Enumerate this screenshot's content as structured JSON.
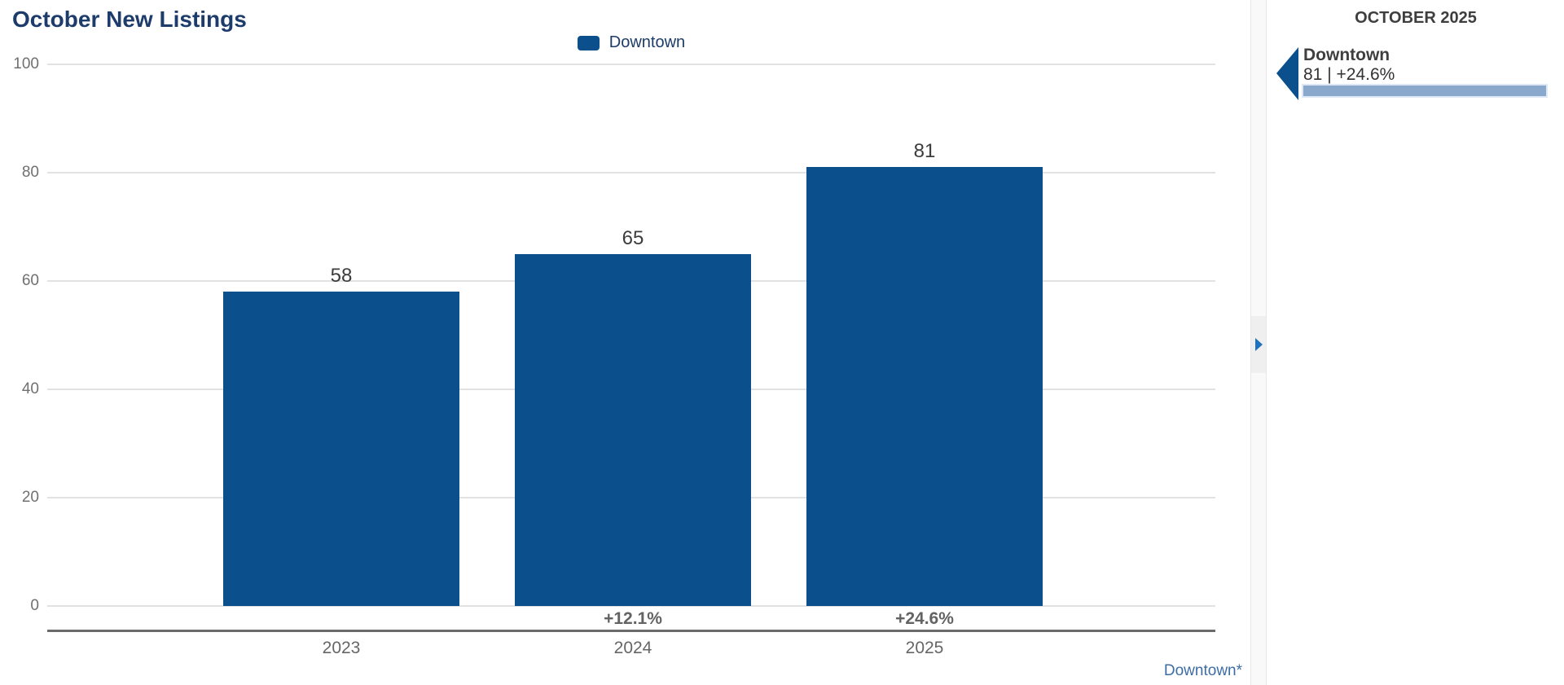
{
  "chart_data": {
    "type": "bar",
    "title": "October New Listings",
    "categories": [
      "2023",
      "2024",
      "2025"
    ],
    "series": [
      {
        "name": "Downtown",
        "values": [
          58,
          65,
          81
        ]
      }
    ],
    "value_labels": [
      "58",
      "65",
      "81"
    ],
    "pct_change_labels": [
      "",
      "+12.1%",
      "+24.6%"
    ],
    "ylabel": "",
    "xlabel": "",
    "ylim": [
      0,
      100
    ],
    "yticks": [
      0,
      20,
      40,
      60,
      80,
      100
    ],
    "grid": true,
    "legend_position": "top-center",
    "bar_color": "#0b4f8c",
    "footnote": "Downtown*"
  },
  "sidebar": {
    "header": "OCTOBER 2025",
    "entries": [
      {
        "name": "Downtown",
        "stat": "81 | +24.6%",
        "progress_pct": 100,
        "marker_icon": "triangle-left"
      }
    ]
  },
  "panel_toggle": {
    "icon": "chevron-right"
  },
  "colors": {
    "bar": "#0b4f8c",
    "title_text": "#1d3c6b",
    "axis_text": "#666666",
    "gridline": "#e2e2e2",
    "link_text": "#3d6da5",
    "toggle_arrow": "#1f72bf",
    "progress_fill": "#8aa8cc"
  }
}
